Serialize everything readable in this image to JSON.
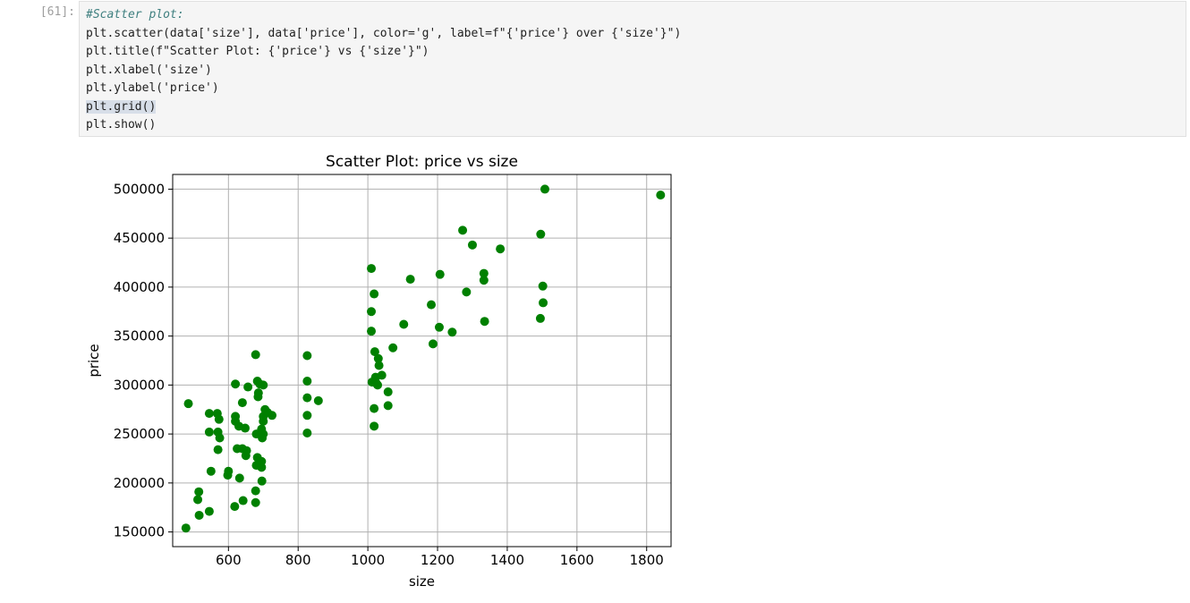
{
  "cell": {
    "prompt": "[61]:",
    "code_lines": [
      "#Scatter plot:",
      "plt.scatter(data['size'], data['price'], color='g', label=f\"{'price'} over {'size'}\")",
      "plt.title(f\"Scatter Plot: {'price'} vs {'size'}\")",
      "plt.xlabel('size')",
      "plt.ylabel('price')",
      "plt.grid()",
      "plt.show()"
    ]
  },
  "chart_data": {
    "type": "scatter",
    "title": "Scatter Plot: price vs size",
    "xlabel": "size",
    "ylabel": "price",
    "xlim": [
      440,
      1870
    ],
    "ylim": [
      135000,
      515000
    ],
    "xticks": [
      600,
      800,
      1000,
      1200,
      1400,
      1600,
      1800
    ],
    "yticks": [
      150000,
      200000,
      250000,
      300000,
      350000,
      400000,
      450000,
      500000
    ],
    "grid": true,
    "color": "#008000",
    "points": [
      [
        485,
        281000
      ],
      [
        478,
        154000
      ],
      [
        515,
        191000
      ],
      [
        512,
        183000
      ],
      [
        516,
        167000
      ],
      [
        545,
        171000
      ],
      [
        545,
        271000
      ],
      [
        545,
        252000
      ],
      [
        550,
        212000
      ],
      [
        568,
        271000
      ],
      [
        570,
        252000
      ],
      [
        573,
        265000
      ],
      [
        575,
        246000
      ],
      [
        570,
        234000
      ],
      [
        598,
        208000
      ],
      [
        600,
        212000
      ],
      [
        618,
        176000
      ],
      [
        620,
        268000
      ],
      [
        620,
        263000
      ],
      [
        620,
        301000
      ],
      [
        625,
        235000
      ],
      [
        630,
        258000
      ],
      [
        632,
        205000
      ],
      [
        640,
        282000
      ],
      [
        640,
        235000
      ],
      [
        642,
        182000
      ],
      [
        648,
        256000
      ],
      [
        650,
        228000
      ],
      [
        652,
        233000
      ],
      [
        656,
        298000
      ],
      [
        678,
        331000
      ],
      [
        678,
        192000
      ],
      [
        678,
        180000
      ],
      [
        680,
        250000
      ],
      [
        680,
        218000
      ],
      [
        683,
        304000
      ],
      [
        683,
        226000
      ],
      [
        685,
        288000
      ],
      [
        686,
        292000
      ],
      [
        690,
        301000
      ],
      [
        695,
        255000
      ],
      [
        695,
        222000
      ],
      [
        695,
        216000
      ],
      [
        696,
        202000
      ],
      [
        697,
        246000
      ],
      [
        700,
        268000
      ],
      [
        700,
        263000
      ],
      [
        700,
        250000
      ],
      [
        700,
        300000
      ],
      [
        705,
        275000
      ],
      [
        712,
        272000
      ],
      [
        725,
        269000
      ],
      [
        826,
        330000
      ],
      [
        826,
        304000
      ],
      [
        826,
        287000
      ],
      [
        826,
        269000
      ],
      [
        826,
        251000
      ],
      [
        858,
        284000
      ],
      [
        1010,
        419000
      ],
      [
        1010,
        375000
      ],
      [
        1010,
        355000
      ],
      [
        1012,
        303000
      ],
      [
        1018,
        393000
      ],
      [
        1018,
        276000
      ],
      [
        1018,
        258000
      ],
      [
        1020,
        334000
      ],
      [
        1022,
        308000
      ],
      [
        1024,
        302000
      ],
      [
        1028,
        300000
      ],
      [
        1030,
        327000
      ],
      [
        1032,
        320000
      ],
      [
        1040,
        310000
      ],
      [
        1058,
        293000
      ],
      [
        1058,
        279000
      ],
      [
        1072,
        338000
      ],
      [
        1103,
        362000
      ],
      [
        1122,
        408000
      ],
      [
        1182,
        382000
      ],
      [
        1187,
        342000
      ],
      [
        1205,
        359000
      ],
      [
        1207,
        413000
      ],
      [
        1242,
        354000
      ],
      [
        1272,
        458000
      ],
      [
        1283,
        395000
      ],
      [
        1300,
        443000
      ],
      [
        1333,
        407000
      ],
      [
        1333,
        414000
      ],
      [
        1335,
        365000
      ],
      [
        1380,
        439000
      ],
      [
        1495,
        368000
      ],
      [
        1496,
        454000
      ],
      [
        1502,
        401000
      ],
      [
        1503,
        384000
      ],
      [
        1508,
        500000
      ],
      [
        1840,
        494000
      ]
    ]
  }
}
